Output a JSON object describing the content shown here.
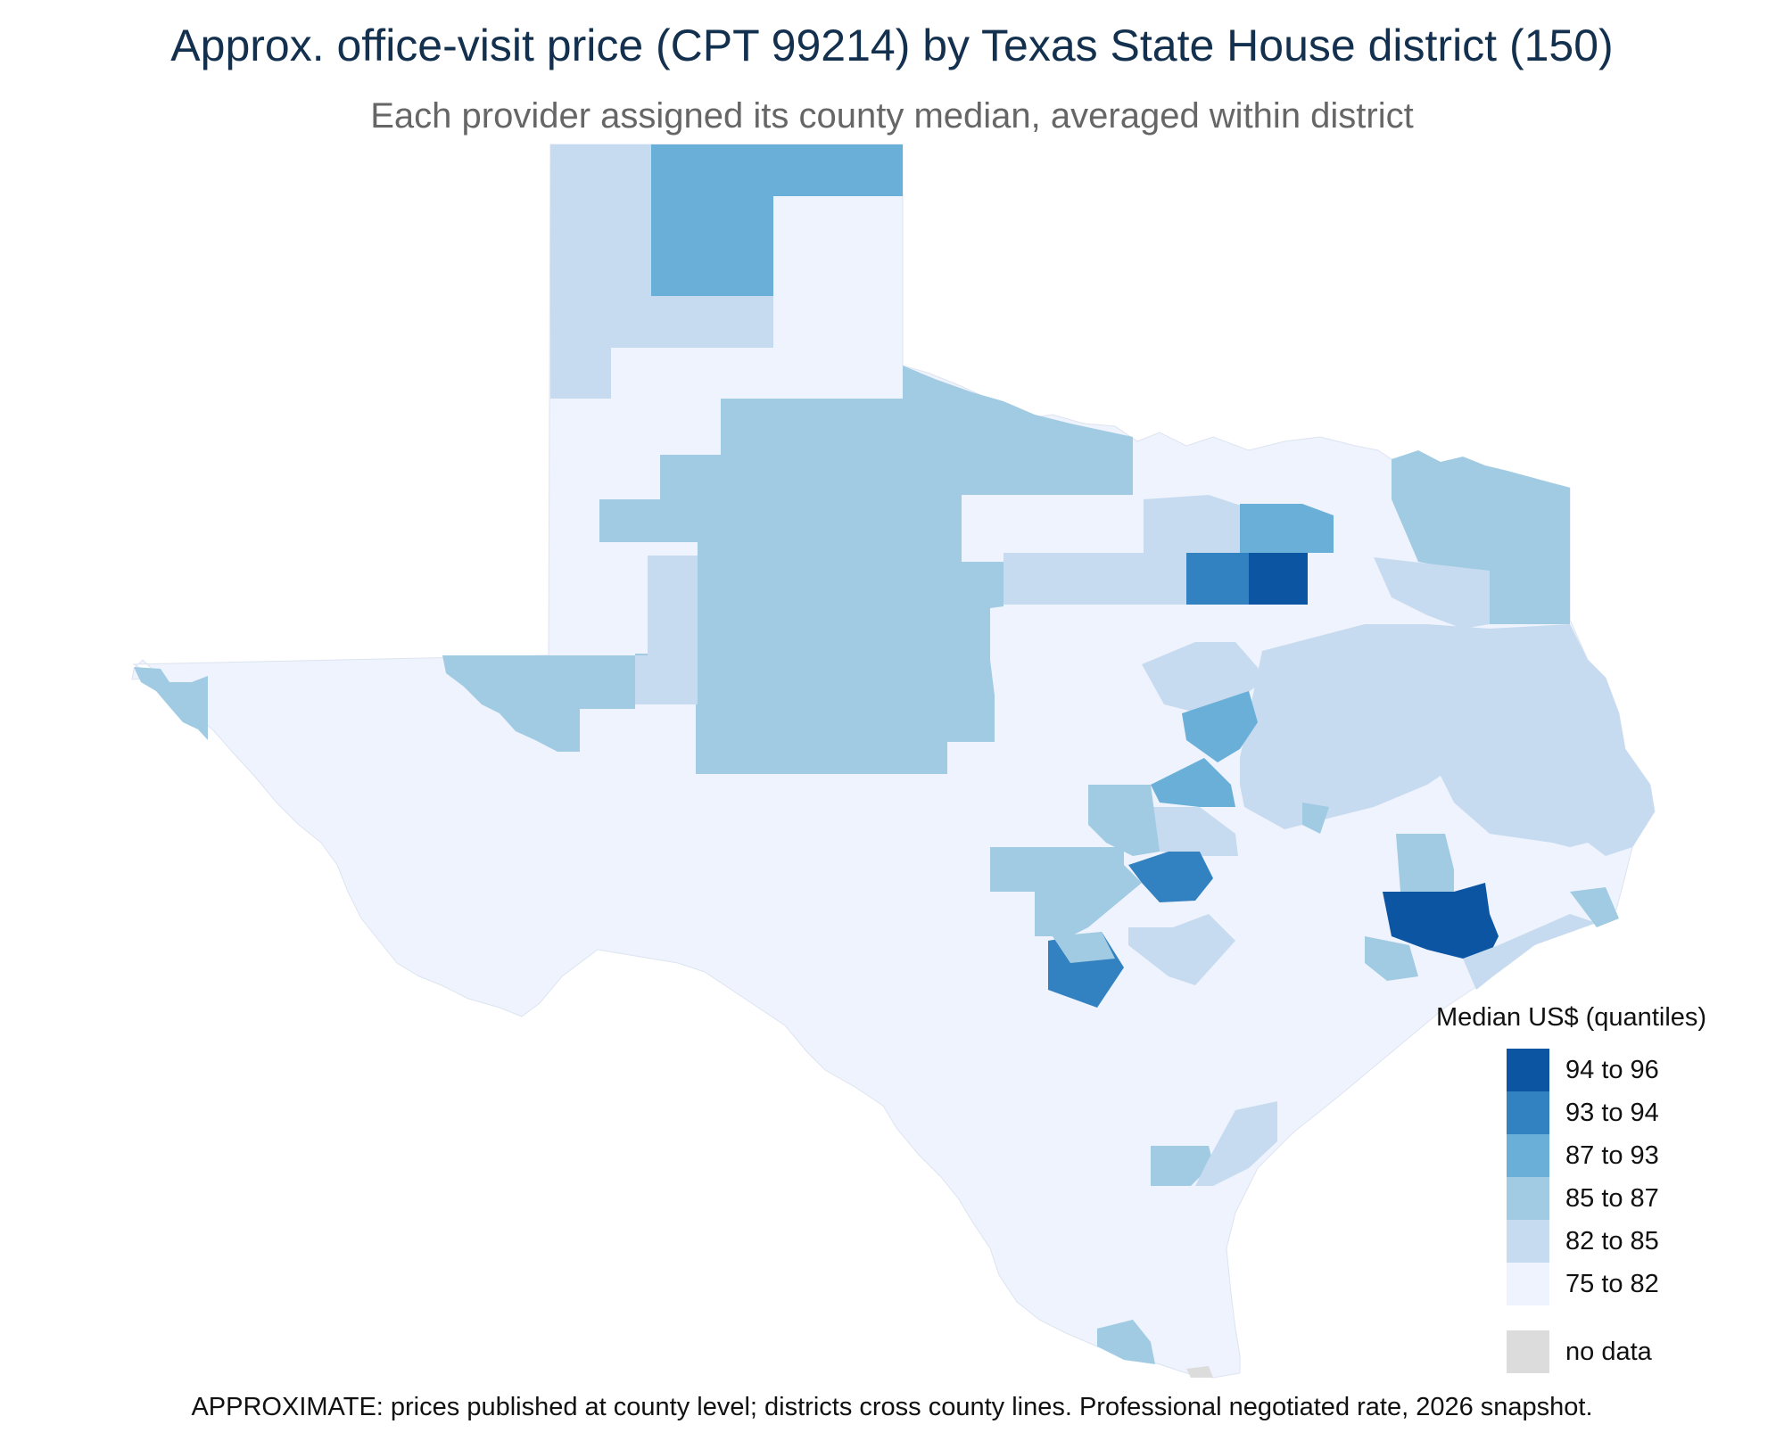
{
  "title": "Approx. office-visit price (CPT 99214) by Texas State House district (150)",
  "subtitle": "Each provider assigned its county median, averaged within district",
  "legend": {
    "title": "Median US$ (quantiles)",
    "bins": [
      {
        "label": "94 to 96",
        "color": "#0b55a3"
      },
      {
        "label": "93 to 94",
        "color": "#3281c1"
      },
      {
        "label": "87 to 93",
        "color": "#6aafd7"
      },
      {
        "label": "85 to 87",
        "color": "#a0cbe2"
      },
      {
        "label": "82 to 85",
        "color": "#c6dbef"
      },
      {
        "label": "75 to 82",
        "color": "#eef3fd"
      }
    ],
    "no_data": {
      "label": "no data",
      "color": "#dcdcdc"
    }
  },
  "footnote": "APPROXIMATE: prices published at county level; districts cross county lines. Professional negotiated rate, 2026 snapshot."
}
